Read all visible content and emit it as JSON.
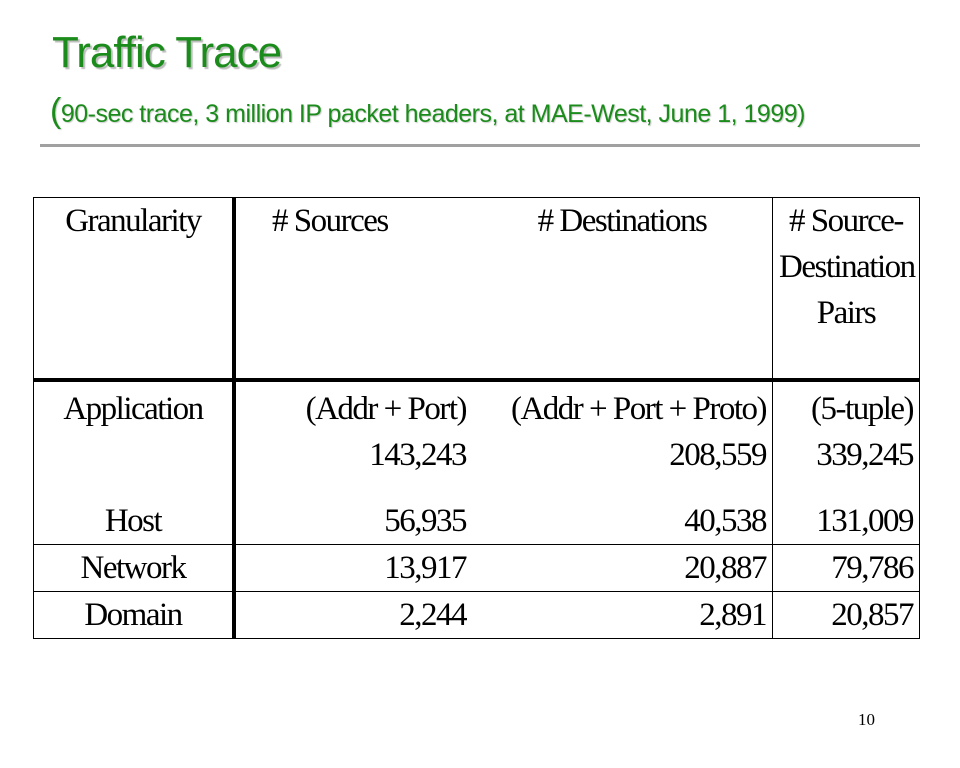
{
  "header": {
    "title": "Traffic Trace",
    "subtitle_paren": "(",
    "subtitle": "90-sec trace, 3 million IP packet headers, at MAE-West, June 1, 1999)"
  },
  "table": {
    "columns": [
      "Granularity",
      "# Sources",
      "# Destinations",
      "# Source-Destination Pairs"
    ],
    "rows": [
      [
        [
          "Application"
        ],
        [
          "(Addr + Port)",
          "143,243"
        ],
        [
          "(Addr + Port + Proto)",
          "208,559"
        ],
        [
          "(5-tuple)",
          "339,245"
        ]
      ],
      [
        [
          "Host"
        ],
        [
          "56,935"
        ],
        [
          "40,538"
        ],
        [
          "131,009"
        ]
      ],
      [
        [
          "Network"
        ],
        [
          "13,917"
        ],
        [
          "20,887"
        ],
        [
          "79,786"
        ]
      ],
      [
        [
          "Domain"
        ],
        [
          "2,244"
        ],
        [
          "2,891"
        ],
        [
          "20,857"
        ]
      ]
    ]
  },
  "footer": {
    "page_number": "10"
  }
}
